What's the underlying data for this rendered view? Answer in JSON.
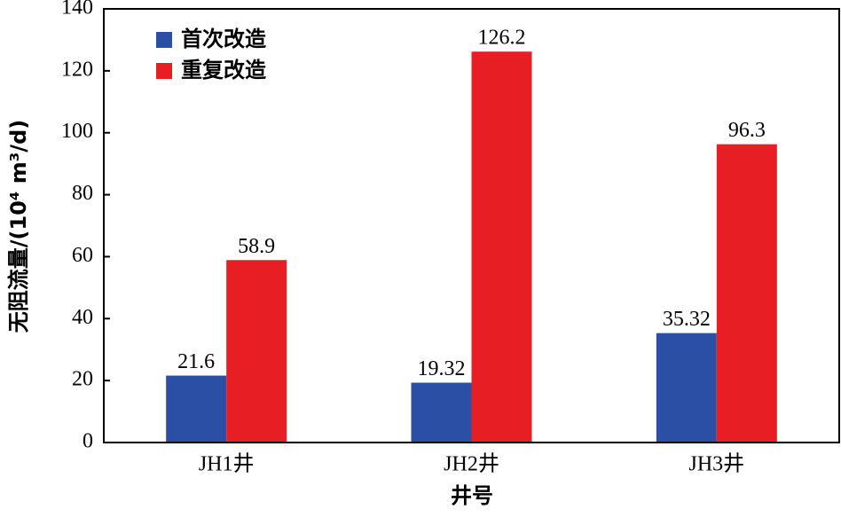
{
  "chart_data": {
    "type": "bar",
    "xlabel": "井号",
    "ylabel": "无阻流量/(10⁴ m³/d)",
    "categories": [
      "JH1井",
      "JH2井",
      "JH3井"
    ],
    "series": [
      {
        "name": "首次改造",
        "color": "#2b4fa5",
        "values": [
          21.6,
          19.32,
          35.32
        ]
      },
      {
        "name": "重复改造",
        "color": "#e81e25",
        "values": [
          58.9,
          126.2,
          96.3
        ]
      }
    ],
    "ylim": [
      0,
      140
    ],
    "yticks": [
      0,
      20,
      40,
      60,
      80,
      100,
      120,
      140
    ],
    "legend": "upper left"
  }
}
